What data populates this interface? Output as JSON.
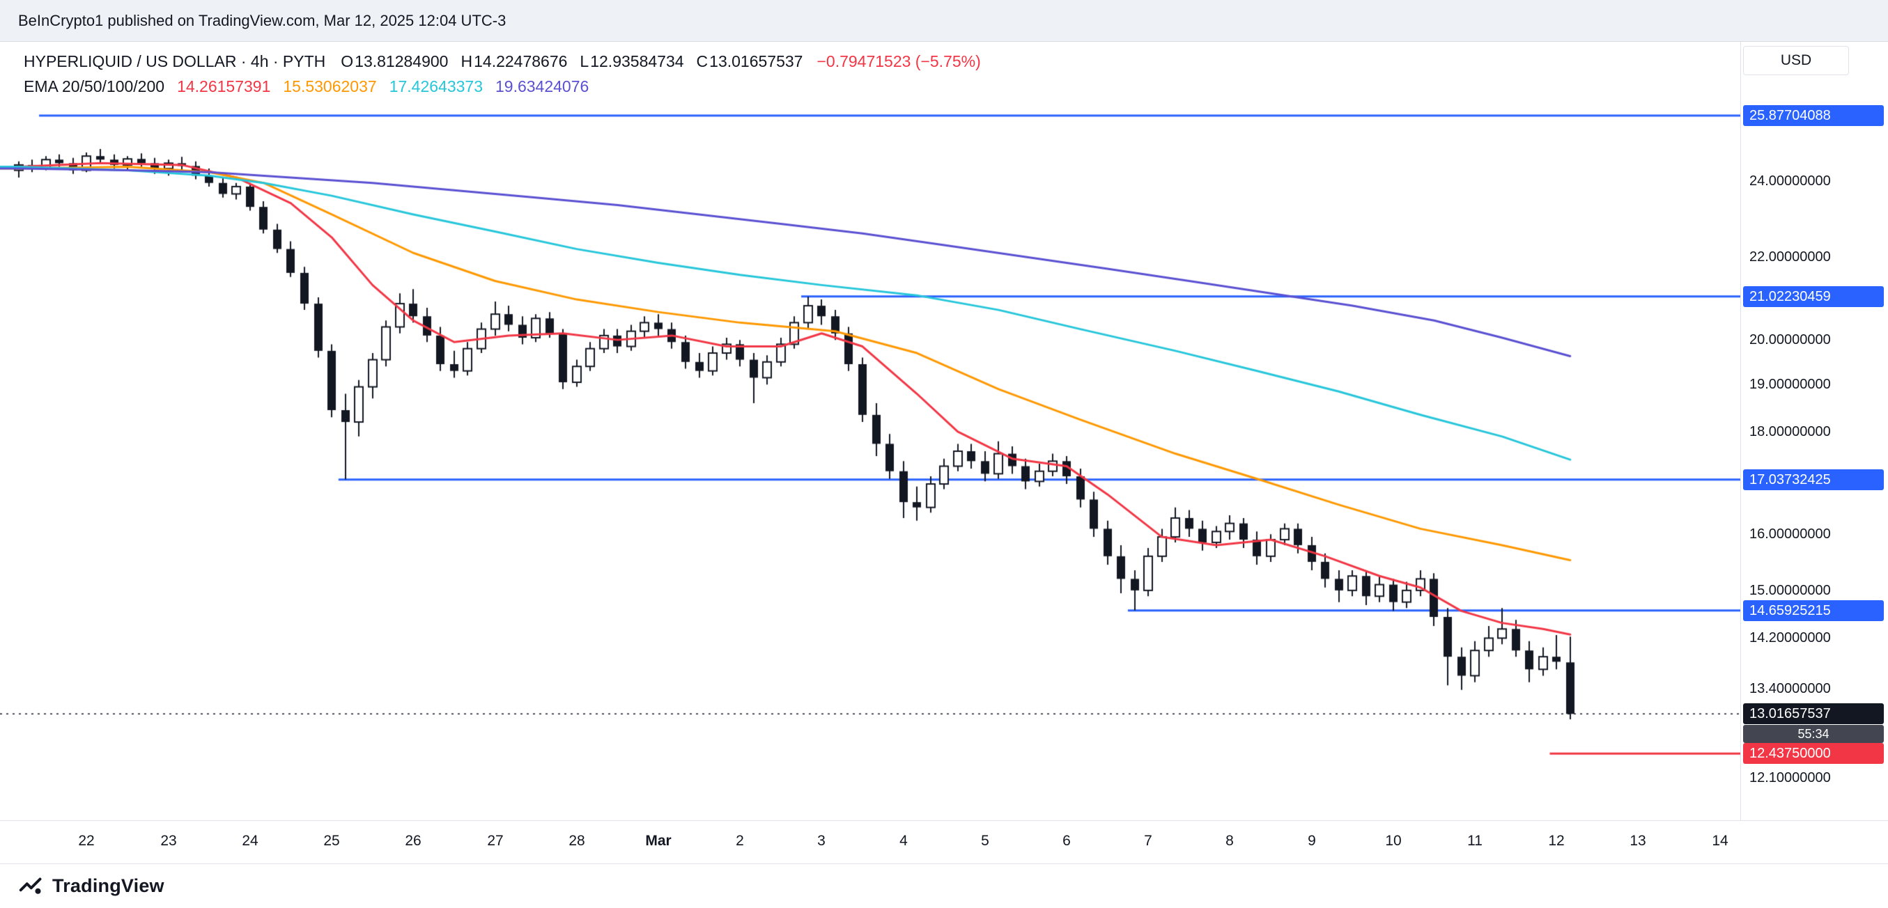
{
  "header": {
    "published_note": "BeInCrypto1 published on TradingView.com, Mar 12, 2025 12:04 UTC-3"
  },
  "legend": {
    "title": "HYPERLIQUID / US DOLLAR · 4h · PYTH",
    "ohlc": {
      "o_label": "O",
      "o": "13.81284900",
      "h_label": "H",
      "h": "14.22478676",
      "l_label": "L",
      "l": "12.93584734",
      "c_label": "C",
      "c": "13.01657537"
    },
    "change": "−0.79471523 (−5.75%)",
    "ema_label": "EMA 20/50/100/200",
    "ema_values": [
      "14.26157391",
      "15.53062037",
      "17.42643373",
      "19.63424076"
    ]
  },
  "price_scale": {
    "currency_button": "USD",
    "ticks": [
      {
        "price": 24,
        "label": "24.00000000"
      },
      {
        "price": 22,
        "label": "22.00000000"
      },
      {
        "price": 20,
        "label": "20.00000000"
      },
      {
        "price": 19,
        "label": "19.00000000"
      },
      {
        "price": 18,
        "label": "18.00000000"
      },
      {
        "price": 16,
        "label": "16.00000000"
      },
      {
        "price": 15,
        "label": "15.00000000"
      },
      {
        "price": 14.2,
        "label": "14.20000000"
      },
      {
        "price": 13.4,
        "label": "13.40000000"
      },
      {
        "price": 12.1,
        "label": "12.10000000"
      }
    ]
  },
  "time_scale": {
    "labels": [
      {
        "text": "22",
        "index": 5
      },
      {
        "text": "23",
        "index": 11
      },
      {
        "text": "24",
        "index": 17
      },
      {
        "text": "25",
        "index": 23
      },
      {
        "text": "26",
        "index": 29
      },
      {
        "text": "27",
        "index": 35
      },
      {
        "text": "28",
        "index": 41
      },
      {
        "text": "Mar",
        "index": 47,
        "bold": true
      },
      {
        "text": "2",
        "index": 53
      },
      {
        "text": "3",
        "index": 59
      },
      {
        "text": "4",
        "index": 65
      },
      {
        "text": "5",
        "index": 71
      },
      {
        "text": "6",
        "index": 77
      },
      {
        "text": "7",
        "index": 83
      },
      {
        "text": "8",
        "index": 89
      },
      {
        "text": "9",
        "index": 95
      },
      {
        "text": "10",
        "index": 101
      },
      {
        "text": "11",
        "index": 107
      },
      {
        "text": "12",
        "index": 113
      },
      {
        "text": "13",
        "index": 119
      },
      {
        "text": "14",
        "index": 125
      }
    ]
  },
  "footer": {
    "brand": "TradingView"
  },
  "colors": {
    "background": "#ffffff",
    "topbar_bg": "#eef1f6",
    "border": "#e0e3eb",
    "text": "#131722",
    "candle": "#131722",
    "up_fill": "#ffffff",
    "accent_blue": "#2962ff",
    "red": "#f23645",
    "ema20": "#f23645",
    "ema50": "#ff9800",
    "ema100": "#26c6da",
    "ema200": "#5a50d2",
    "countdown_bg": "#434651"
  },
  "chart_data": {
    "type": "candlestick",
    "symbol": "HYPERLIQUID / US DOLLAR",
    "interval": "4h",
    "feed": "PYTH",
    "price_axis": {
      "min": 11.52,
      "max": 28.12,
      "scale": "log"
    },
    "total_slots": 127,
    "candles": [
      [
        24.3,
        24.55,
        24.1,
        24.45
      ],
      [
        24.45,
        24.6,
        24.25,
        24.35
      ],
      [
        24.35,
        24.7,
        24.3,
        24.6
      ],
      [
        24.6,
        24.75,
        24.4,
        24.5
      ],
      [
        24.5,
        24.65,
        24.2,
        24.3
      ],
      [
        24.3,
        24.8,
        24.25,
        24.7
      ],
      [
        24.7,
        24.9,
        24.5,
        24.6
      ],
      [
        24.6,
        24.75,
        24.35,
        24.45
      ],
      [
        24.45,
        24.7,
        24.3,
        24.62
      ],
      [
        24.62,
        24.78,
        24.4,
        24.5
      ],
      [
        24.5,
        24.65,
        24.2,
        24.35
      ],
      [
        24.35,
        24.6,
        24.15,
        24.5
      ],
      [
        24.5,
        24.68,
        24.3,
        24.42
      ],
      [
        24.42,
        24.55,
        24.05,
        24.15
      ],
      [
        24.15,
        24.35,
        23.85,
        23.95
      ],
      [
        23.95,
        24.1,
        23.55,
        23.65
      ],
      [
        23.65,
        23.95,
        23.5,
        23.85
      ],
      [
        23.85,
        23.95,
        23.2,
        23.3
      ],
      [
        23.3,
        23.45,
        22.6,
        22.7
      ],
      [
        22.7,
        22.85,
        22.1,
        22.2
      ],
      [
        22.2,
        22.4,
        21.5,
        21.6
      ],
      [
        21.6,
        21.75,
        20.7,
        20.85
      ],
      [
        20.85,
        21.0,
        19.6,
        19.75
      ],
      [
        19.75,
        19.9,
        18.3,
        18.45
      ],
      [
        18.45,
        18.8,
        17.04,
        18.2
      ],
      [
        18.2,
        19.1,
        17.9,
        18.95
      ],
      [
        18.95,
        19.7,
        18.7,
        19.55
      ],
      [
        19.55,
        20.45,
        19.4,
        20.3
      ],
      [
        20.3,
        21.1,
        20.15,
        20.85
      ],
      [
        20.85,
        21.2,
        20.4,
        20.55
      ],
      [
        20.55,
        20.75,
        19.95,
        20.1
      ],
      [
        20.1,
        20.3,
        19.3,
        19.45
      ],
      [
        19.45,
        19.75,
        19.15,
        19.3
      ],
      [
        19.3,
        19.95,
        19.2,
        19.8
      ],
      [
        19.8,
        20.4,
        19.7,
        20.25
      ],
      [
        20.25,
        20.9,
        20.1,
        20.6
      ],
      [
        20.6,
        20.8,
        20.2,
        20.35
      ],
      [
        20.35,
        20.55,
        19.9,
        20.05
      ],
      [
        20.05,
        20.6,
        19.95,
        20.5
      ],
      [
        20.5,
        20.65,
        20.05,
        20.15
      ],
      [
        20.15,
        20.25,
        18.9,
        19.05
      ],
      [
        19.05,
        19.55,
        18.95,
        19.4
      ],
      [
        19.4,
        19.95,
        19.3,
        19.8
      ],
      [
        19.8,
        20.25,
        19.7,
        20.1
      ],
      [
        20.1,
        20.25,
        19.7,
        19.85
      ],
      [
        19.85,
        20.35,
        19.75,
        20.2
      ],
      [
        20.2,
        20.55,
        20.05,
        20.4
      ],
      [
        20.4,
        20.6,
        20.1,
        20.25
      ],
      [
        20.25,
        20.4,
        19.8,
        19.95
      ],
      [
        19.95,
        20.1,
        19.35,
        19.5
      ],
      [
        19.5,
        19.7,
        19.15,
        19.3
      ],
      [
        19.3,
        19.85,
        19.2,
        19.7
      ],
      [
        19.7,
        20.05,
        19.55,
        19.9
      ],
      [
        19.9,
        20.0,
        19.4,
        19.55
      ],
      [
        19.55,
        19.7,
        18.6,
        19.15
      ],
      [
        19.15,
        19.65,
        19.0,
        19.5
      ],
      [
        19.5,
        20.05,
        19.4,
        19.9
      ],
      [
        19.9,
        20.55,
        19.8,
        20.4
      ],
      [
        20.4,
        21.02,
        20.25,
        20.8
      ],
      [
        20.8,
        20.95,
        20.35,
        20.55
      ],
      [
        20.55,
        20.7,
        20.0,
        20.15
      ],
      [
        20.15,
        20.3,
        19.3,
        19.45
      ],
      [
        19.45,
        19.6,
        18.2,
        18.35
      ],
      [
        18.35,
        18.6,
        17.5,
        17.75
      ],
      [
        17.75,
        17.95,
        17.05,
        17.2
      ],
      [
        17.2,
        17.4,
        16.3,
        16.6
      ],
      [
        16.6,
        16.9,
        16.25,
        16.5
      ],
      [
        16.5,
        17.1,
        16.4,
        16.95
      ],
      [
        16.95,
        17.45,
        16.85,
        17.3
      ],
      [
        17.3,
        17.75,
        17.2,
        17.6
      ],
      [
        17.6,
        17.75,
        17.25,
        17.4
      ],
      [
        17.4,
        17.6,
        17.0,
        17.15
      ],
      [
        17.15,
        17.8,
        17.05,
        17.55
      ],
      [
        17.55,
        17.7,
        17.15,
        17.3
      ],
      [
        17.3,
        17.45,
        16.85,
        17.0
      ],
      [
        17.0,
        17.35,
        16.9,
        17.2
      ],
      [
        17.2,
        17.55,
        17.1,
        17.4
      ],
      [
        17.4,
        17.5,
        16.95,
        17.1
      ],
      [
        17.1,
        17.25,
        16.5,
        16.65
      ],
      [
        16.65,
        16.8,
        15.95,
        16.1
      ],
      [
        16.1,
        16.25,
        15.45,
        15.6
      ],
      [
        15.6,
        15.8,
        14.95,
        15.2
      ],
      [
        15.2,
        15.35,
        14.66,
        15.0
      ],
      [
        15.0,
        15.75,
        14.9,
        15.6
      ],
      [
        15.6,
        16.1,
        15.5,
        15.95
      ],
      [
        15.95,
        16.5,
        15.85,
        16.3
      ],
      [
        16.3,
        16.45,
        15.95,
        16.1
      ],
      [
        16.1,
        16.25,
        15.7,
        15.85
      ],
      [
        15.85,
        16.15,
        15.75,
        16.05
      ],
      [
        16.05,
        16.35,
        15.9,
        16.2
      ],
      [
        16.2,
        16.3,
        15.75,
        15.9
      ],
      [
        15.9,
        16.05,
        15.45,
        15.6
      ],
      [
        15.6,
        16.0,
        15.5,
        15.9
      ],
      [
        15.9,
        16.2,
        15.8,
        16.1
      ],
      [
        16.1,
        16.2,
        15.65,
        15.8
      ],
      [
        15.8,
        15.95,
        15.35,
        15.5
      ],
      [
        15.5,
        15.65,
        15.05,
        15.2
      ],
      [
        15.2,
        15.35,
        14.8,
        15.0
      ],
      [
        15.0,
        15.35,
        14.9,
        15.25
      ],
      [
        15.25,
        15.35,
        14.75,
        14.9
      ],
      [
        14.9,
        15.25,
        14.8,
        15.1
      ],
      [
        15.1,
        15.2,
        14.65,
        14.8
      ],
      [
        14.8,
        15.15,
        14.7,
        15.0
      ],
      [
        15.0,
        15.35,
        14.9,
        15.2
      ],
      [
        15.2,
        15.3,
        14.4,
        14.55
      ],
      [
        14.55,
        14.7,
        13.45,
        13.9
      ],
      [
        13.9,
        14.05,
        13.38,
        13.6
      ],
      [
        13.6,
        14.15,
        13.5,
        14.0
      ],
      [
        14.0,
        14.4,
        13.9,
        14.2
      ],
      [
        14.2,
        14.7,
        14.1,
        14.35
      ],
      [
        14.35,
        14.5,
        13.9,
        14.0
      ],
      [
        14.0,
        14.15,
        13.5,
        13.7
      ],
      [
        13.7,
        14.05,
        13.6,
        13.9
      ],
      [
        13.9,
        14.25,
        13.7,
        13.82
      ],
      [
        13.81,
        14.22478676,
        12.93584734,
        13.01657537
      ]
    ],
    "ema_overlays": [
      {
        "name": "EMA 20",
        "period": 20,
        "color_key": "ema20",
        "current": "14.26157391",
        "points": [
          [
            0,
            24.4
          ],
          [
            6,
            24.5
          ],
          [
            12,
            24.45
          ],
          [
            16,
            24.1
          ],
          [
            20,
            23.4
          ],
          [
            23,
            22.5
          ],
          [
            26,
            21.3
          ],
          [
            29,
            20.45
          ],
          [
            32,
            19.95
          ],
          [
            36,
            20.1
          ],
          [
            40,
            20.15
          ],
          [
            44,
            20.0
          ],
          [
            48,
            20.1
          ],
          [
            52,
            19.85
          ],
          [
            56,
            19.85
          ],
          [
            59,
            20.15
          ],
          [
            62,
            19.85
          ],
          [
            66,
            18.8
          ],
          [
            69,
            18.0
          ],
          [
            73,
            17.45
          ],
          [
            77,
            17.3
          ],
          [
            80,
            16.75
          ],
          [
            84,
            15.95
          ],
          [
            88,
            15.8
          ],
          [
            92,
            15.9
          ],
          [
            96,
            15.6
          ],
          [
            100,
            15.25
          ],
          [
            103,
            15.05
          ],
          [
            106,
            14.65
          ],
          [
            109,
            14.45
          ],
          [
            112,
            14.35
          ],
          [
            114,
            14.26
          ]
        ]
      },
      {
        "name": "EMA 50",
        "period": 50,
        "color_key": "ema50",
        "current": "15.53062037",
        "points": [
          [
            0,
            24.35
          ],
          [
            8,
            24.4
          ],
          [
            14,
            24.25
          ],
          [
            18,
            23.95
          ],
          [
            23,
            23.1
          ],
          [
            29,
            22.1
          ],
          [
            35,
            21.4
          ],
          [
            41,
            20.95
          ],
          [
            47,
            20.65
          ],
          [
            53,
            20.4
          ],
          [
            60,
            20.2
          ],
          [
            66,
            19.7
          ],
          [
            72,
            18.9
          ],
          [
            78,
            18.25
          ],
          [
            85,
            17.55
          ],
          [
            91,
            17.05
          ],
          [
            97,
            16.55
          ],
          [
            103,
            16.1
          ],
          [
            109,
            15.8
          ],
          [
            114,
            15.53
          ]
        ]
      },
      {
        "name": "EMA 100",
        "period": 100,
        "color_key": "ema100",
        "current": "17.42643373",
        "points": [
          [
            0,
            24.4
          ],
          [
            8,
            24.3
          ],
          [
            14,
            24.15
          ],
          [
            18,
            23.95
          ],
          [
            23,
            23.6
          ],
          [
            29,
            23.1
          ],
          [
            35,
            22.65
          ],
          [
            41,
            22.2
          ],
          [
            47,
            21.85
          ],
          [
            53,
            21.55
          ],
          [
            59,
            21.3
          ],
          [
            66,
            21.05
          ],
          [
            72,
            20.7
          ],
          [
            78,
            20.25
          ],
          [
            85,
            19.75
          ],
          [
            91,
            19.3
          ],
          [
            97,
            18.85
          ],
          [
            103,
            18.35
          ],
          [
            109,
            17.9
          ],
          [
            114,
            17.43
          ]
        ]
      },
      {
        "name": "EMA 200",
        "period": 200,
        "color_key": "ema200",
        "current": "19.63424076",
        "points": [
          [
            0,
            24.35
          ],
          [
            8,
            24.3
          ],
          [
            14,
            24.25
          ],
          [
            20,
            24.1
          ],
          [
            26,
            23.95
          ],
          [
            32,
            23.75
          ],
          [
            38,
            23.55
          ],
          [
            44,
            23.35
          ],
          [
            50,
            23.1
          ],
          [
            56,
            22.85
          ],
          [
            62,
            22.6
          ],
          [
            68,
            22.3
          ],
          [
            74,
            22.0
          ],
          [
            80,
            21.7
          ],
          [
            86,
            21.4
          ],
          [
            92,
            21.1
          ],
          [
            98,
            20.8
          ],
          [
            104,
            20.45
          ],
          [
            109,
            20.05
          ],
          [
            114,
            19.63
          ]
        ]
      }
    ],
    "levels": [
      {
        "price": 25.87704088,
        "label": "25.87704088",
        "from_index": 2,
        "color_key": "accent_blue"
      },
      {
        "price": 21.02230459,
        "label": "21.02230459",
        "from_index": 58,
        "color_key": "accent_blue"
      },
      {
        "price": 17.03732425,
        "label": "17.03732425",
        "from_index": 24,
        "color_key": "accent_blue"
      },
      {
        "price": 14.65925215,
        "label": "14.65925215",
        "from_index": 82,
        "color_key": "accent_blue"
      },
      {
        "price": 12.4375,
        "label": "12.43750000",
        "from_index": 113,
        "color_key": "red"
      }
    ],
    "current_price": {
      "value": 13.01657537,
      "label": "13.01657537",
      "countdown": "55:34"
    }
  }
}
